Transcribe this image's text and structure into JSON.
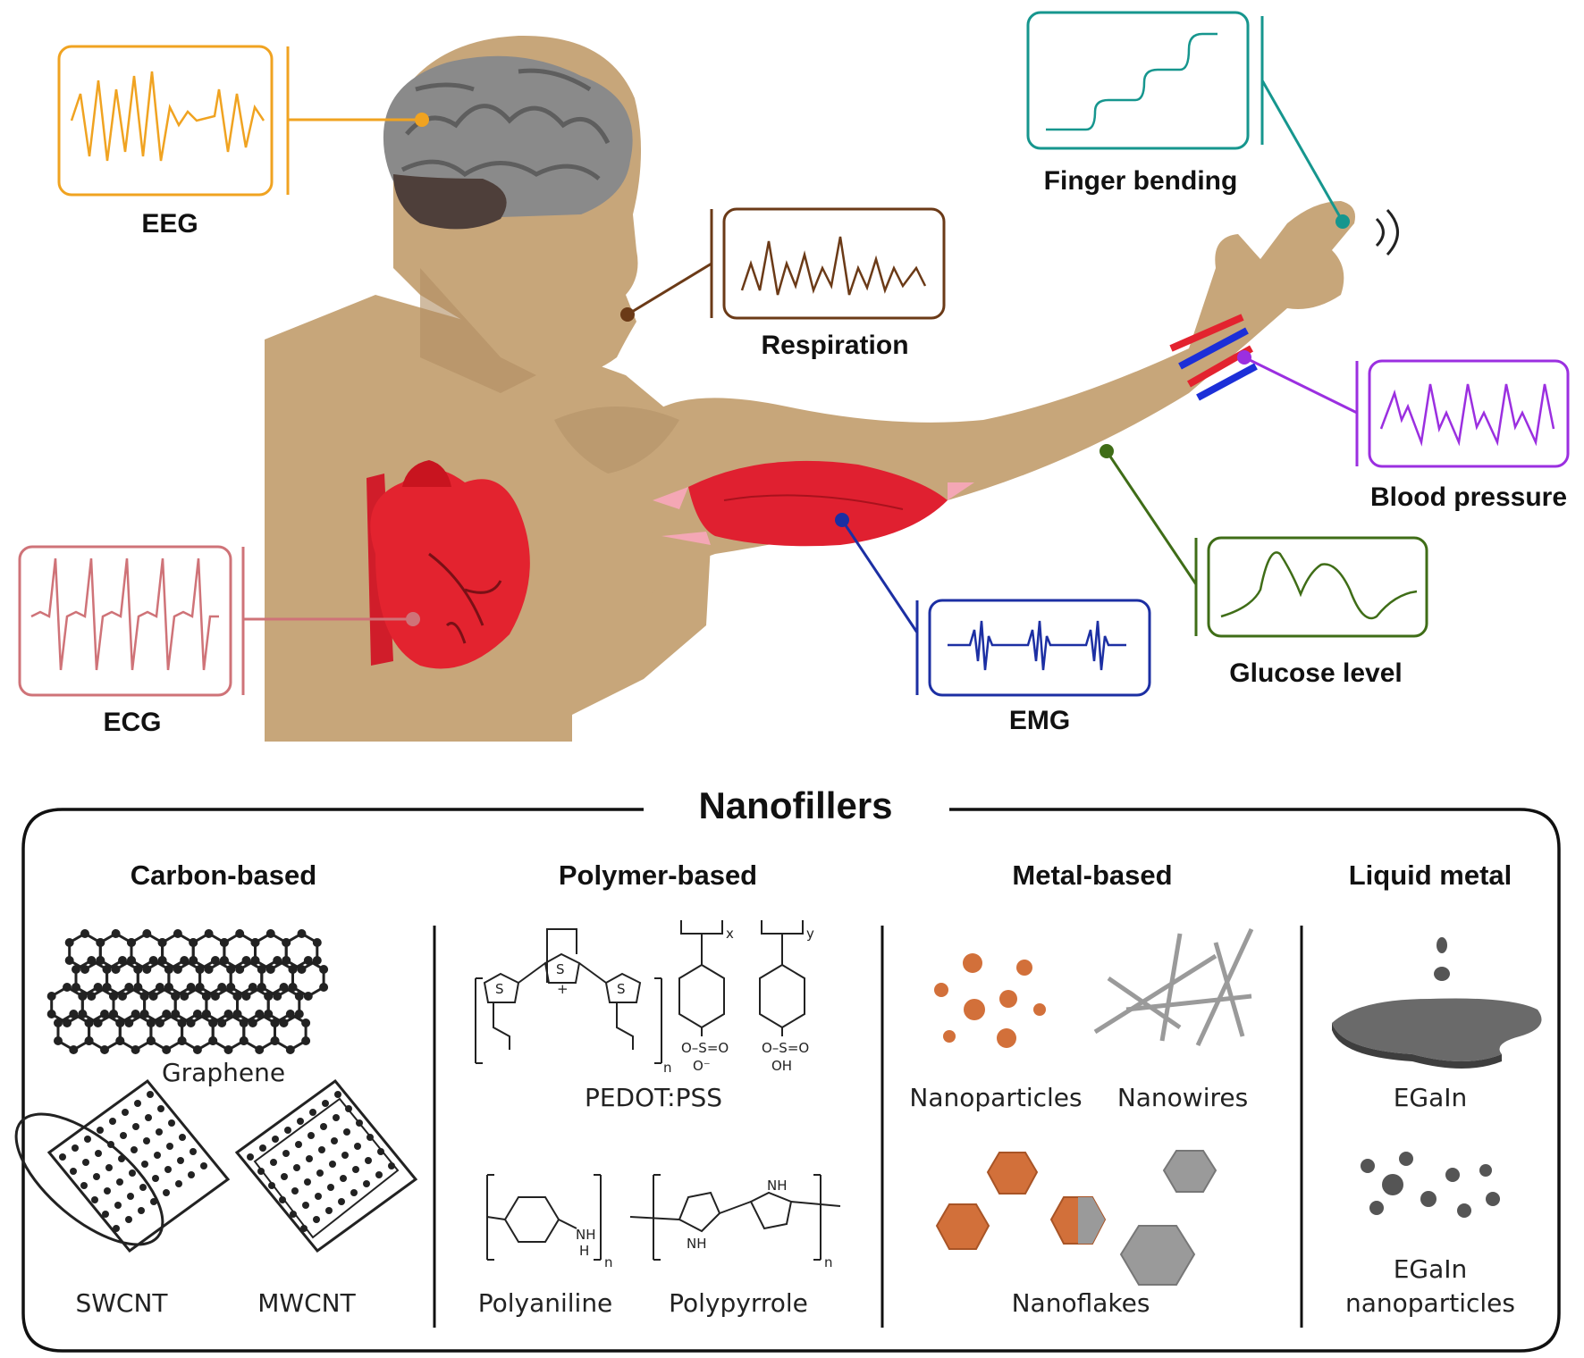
{
  "signals": {
    "eeg": {
      "label": "EEG",
      "color": "#f0a321"
    },
    "ecg": {
      "label": "ECG",
      "color": "#cf7378"
    },
    "respiration": {
      "label": "Respiration",
      "color": "#6b3a17"
    },
    "emg": {
      "label": "EMG",
      "color": "#1c2fa3"
    },
    "finger_bending": {
      "label": "Finger bending",
      "color": "#16968e"
    },
    "blood_pressure": {
      "label": "Blood pressure",
      "color": "#9b2fe0"
    },
    "glucose_level": {
      "label": "Glucose level",
      "color": "#3f6d17"
    }
  },
  "nanofillers": {
    "title": "Nanofillers",
    "categories": [
      {
        "heading": "Carbon-based",
        "items": [
          "Graphene",
          "SWCNT",
          "MWCNT"
        ]
      },
      {
        "heading": "Polymer-based",
        "items": [
          "PEDOT:PSS",
          "Polyaniline",
          "Polypyrrole"
        ]
      },
      {
        "heading": "Metal-based",
        "items": [
          "Nanoparticles",
          "Nanowires",
          "Nanoflakes"
        ]
      },
      {
        "heading": "Liquid metal",
        "items": [
          "EGaIn",
          "EGaIn nanoparticles"
        ]
      }
    ],
    "chem_text": {
      "s": "S",
      "plus": "+",
      "x": "x",
      "y": "y",
      "n": "n",
      "so3_minus": "O–S=O",
      "o_minus": "O⁻",
      "so3h": "O–S=O",
      "oh": "OH",
      "nh": "NH",
      "h": "H",
      "o": "O"
    }
  },
  "colors": {
    "skin": "#c7a67a",
    "skin_shadow": "#b08d63",
    "heart": "#e3232f",
    "muscle": "#e02030",
    "tendon": "#f4a7b5",
    "brain": "#7e7e7e",
    "copper": "#d2703a",
    "silver": "#9a9a9a"
  }
}
